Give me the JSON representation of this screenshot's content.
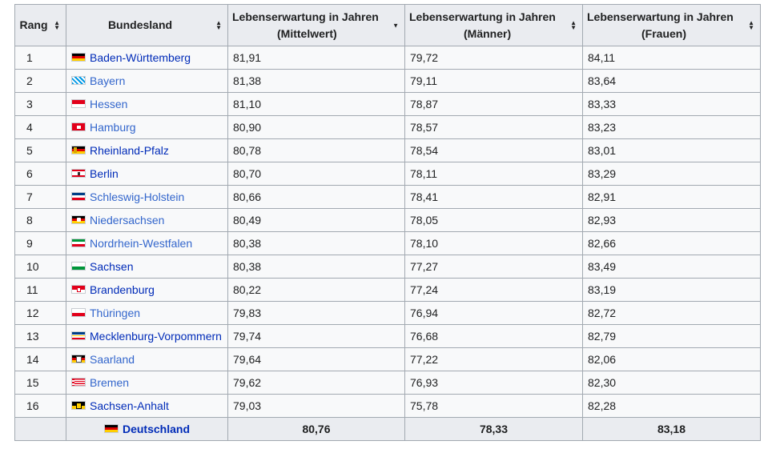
{
  "headers": {
    "rang": "Rang",
    "bundesland": "Bundesland",
    "mittel_1": "Lebenserwartung in Jahren",
    "mittel_2": "(Mittelwert)",
    "maenner_1": "Lebenserwartung in Jahren",
    "maenner_2": "(Männer)",
    "frauen_1": "Lebenserwartung in Jahren",
    "frauen_2": "(Frauen)"
  },
  "rows": [
    {
      "rank": "1",
      "name": "Baden-Württemberg",
      "mean": "81,91",
      "men": "79,72",
      "women": "84,11",
      "flag": "bw"
    },
    {
      "rank": "2",
      "name": "Bayern",
      "mean": "81,38",
      "men": "79,11",
      "women": "83,64",
      "flag": "by"
    },
    {
      "rank": "3",
      "name": "Hessen",
      "mean": "81,10",
      "men": "78,87",
      "women": "83,33",
      "flag": "he"
    },
    {
      "rank": "4",
      "name": "Hamburg",
      "mean": "80,90",
      "men": "78,57",
      "women": "83,23",
      "flag": "hh"
    },
    {
      "rank": "5",
      "name": "Rheinland-Pfalz",
      "mean": "80,78",
      "men": "78,54",
      "women": "83,01",
      "flag": "rp"
    },
    {
      "rank": "6",
      "name": "Berlin",
      "mean": "80,70",
      "men": "78,11",
      "women": "83,29",
      "flag": "be"
    },
    {
      "rank": "7",
      "name": "Schleswig-Holstein",
      "mean": "80,66",
      "men": "78,41",
      "women": "82,91",
      "flag": "sh"
    },
    {
      "rank": "8",
      "name": "Niedersachsen",
      "mean": "80,49",
      "men": "78,05",
      "women": "82,93",
      "flag": "ni"
    },
    {
      "rank": "9",
      "name": "Nordrhein-Westfalen",
      "mean": "80,38",
      "men": "78,10",
      "women": "82,66",
      "flag": "nw"
    },
    {
      "rank": "10",
      "name": "Sachsen",
      "mean": "80,38",
      "men": "77,27",
      "women": "83,49",
      "flag": "sn"
    },
    {
      "rank": "11",
      "name": "Brandenburg",
      "mean": "80,22",
      "men": "77,24",
      "women": "83,19",
      "flag": "bb"
    },
    {
      "rank": "12",
      "name": "Thüringen",
      "mean": "79,83",
      "men": "76,94",
      "women": "82,72",
      "flag": "th"
    },
    {
      "rank": "13",
      "name": "Mecklenburg-Vorpommern",
      "mean": "79,74",
      "men": "76,68",
      "women": "82,79",
      "flag": "mv"
    },
    {
      "rank": "14",
      "name": "Saarland",
      "mean": "79,64",
      "men": "77,22",
      "women": "82,06",
      "flag": "sl"
    },
    {
      "rank": "15",
      "name": "Bremen",
      "mean": "79,62",
      "men": "76,93",
      "women": "82,30",
      "flag": "hb"
    },
    {
      "rank": "16",
      "name": "Sachsen-Anhalt",
      "mean": "79,03",
      "men": "75,78",
      "women": "82,28",
      "flag": "st"
    }
  ],
  "total": {
    "name": "Deutschland",
    "mean": "80,76",
    "men": "78,33",
    "women": "83,18",
    "flag": "de"
  },
  "colors": {
    "link": "#3366cc",
    "visited_link": "#002bb8",
    "border": "#a2a9b1",
    "header_bg": "#eaecf0"
  }
}
